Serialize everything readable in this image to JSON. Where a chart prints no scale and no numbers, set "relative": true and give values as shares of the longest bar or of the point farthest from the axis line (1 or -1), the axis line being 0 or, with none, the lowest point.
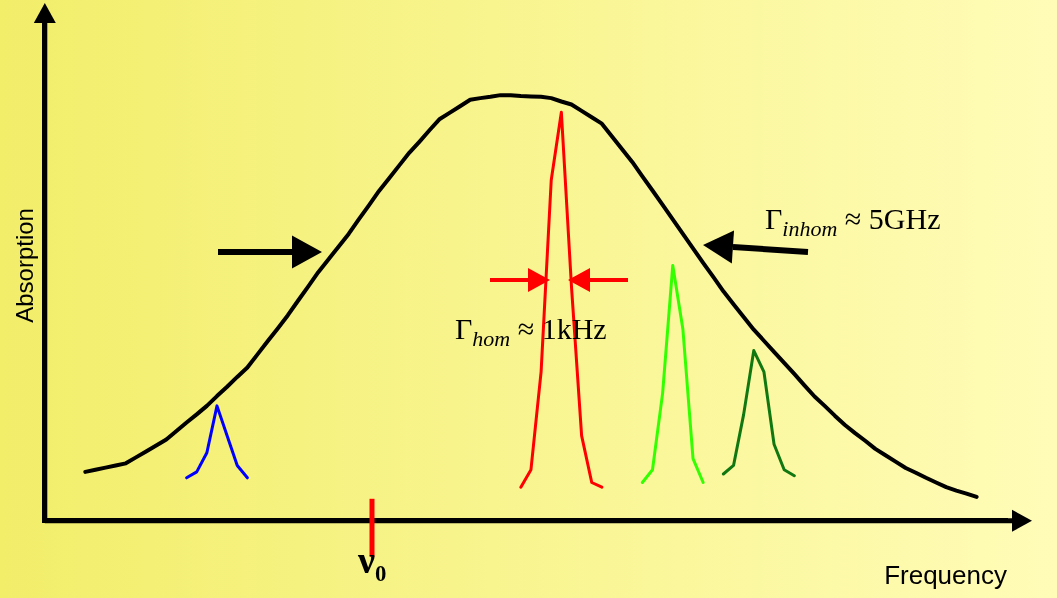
{
  "chart_data": {
    "type": "line",
    "relative": true,
    "xlabel": "Frequency",
    "ylabel": "Absorption",
    "tick_labels": false,
    "grid": false,
    "legend": false,
    "marker": "none",
    "categories": [
      null,
      null,
      null,
      null,
      null,
      null,
      null,
      null,
      null,
      null,
      null,
      null,
      null,
      null,
      null,
      null,
      null,
      null,
      null,
      null,
      null,
      null,
      null,
      null,
      null,
      null,
      null,
      null,
      null,
      null,
      null,
      null,
      null,
      null,
      null,
      null,
      null,
      null,
      null,
      null,
      null,
      null,
      null,
      null,
      null,
      null,
      null,
      null,
      null,
      null,
      null,
      null,
      null,
      null,
      null,
      null,
      null,
      null,
      null,
      null,
      null,
      null,
      null,
      null,
      null,
      null,
      null,
      null,
      null,
      null,
      null,
      null,
      null,
      null,
      null,
      null,
      null,
      null,
      null,
      null,
      null,
      null,
      null,
      null,
      null,
      null,
      null,
      null,
      null,
      null,
      null,
      null,
      null,
      null,
      null,
      null
    ],
    "series": [
      {
        "color": "#000000",
        "values": [
          null,
          null,
          null,
          null,
          0.115,
          0.12,
          0.125,
          0.13,
          0.135,
          0.149,
          0.163,
          0.177,
          0.191,
          0.211,
          0.231,
          0.25,
          0.27,
          0.293,
          0.315,
          0.338,
          0.36,
          0.391,
          0.422,
          0.452,
          0.483,
          0.517,
          0.55,
          0.584,
          0.614,
          0.644,
          0.674,
          0.708,
          0.741,
          0.775,
          0.805,
          0.835,
          0.865,
          0.891,
          0.918,
          0.944,
          0.959,
          0.974,
          0.989,
          0.993,
          0.996,
          1,
          1,
          0.998,
          0.997,
          0.996,
          0.993,
          0.985,
          0.978,
          0.963,
          0.948,
          0.933,
          0.903,
          0.873,
          0.843,
          0.809,
          0.776,
          0.742,
          0.708,
          0.674,
          0.64,
          0.606,
          0.573,
          0.539,
          0.509,
          0.479,
          0.449,
          0.423,
          0.397,
          0.371,
          0.345,
          0.318,
          0.292,
          0.27,
          0.247,
          0.225,
          0.206,
          0.188,
          0.169,
          0.154,
          0.139,
          0.124,
          0.113,
          0.101,
          0.09,
          0.079,
          0.071,
          0.064,
          0.056,
          null,
          null,
          null
        ]
      },
      {
        "color": "#0000ff",
        "values": [
          null,
          null,
          null,
          null,
          null,
          null,
          null,
          null,
          null,
          null,
          null,
          null,
          null,
          null,
          0.101,
          0.115,
          0.16,
          0.27,
          0.2,
          0.13,
          0.101,
          null,
          null,
          null,
          null,
          null,
          null,
          null,
          null,
          null,
          null,
          null,
          null,
          null,
          null,
          null,
          null,
          null,
          null,
          null,
          null,
          null,
          null,
          null,
          null,
          null,
          null,
          null,
          null,
          null,
          null,
          null,
          null,
          null,
          null,
          null,
          null,
          null,
          null,
          null,
          null,
          null,
          null,
          null,
          null,
          null,
          null,
          null,
          null,
          null,
          null,
          null,
          null,
          null,
          null,
          null,
          null,
          null,
          null,
          null,
          null,
          null,
          null,
          null,
          null,
          null,
          null,
          null,
          null,
          null,
          null,
          null,
          null,
          null,
          null,
          null
        ]
      },
      {
        "color": "#ff0000",
        "values": [
          null,
          null,
          null,
          null,
          null,
          null,
          null,
          null,
          null,
          null,
          null,
          null,
          null,
          null,
          null,
          null,
          null,
          null,
          null,
          null,
          null,
          null,
          null,
          null,
          null,
          null,
          null,
          null,
          null,
          null,
          null,
          null,
          null,
          null,
          null,
          null,
          null,
          null,
          null,
          null,
          null,
          null,
          null,
          null,
          null,
          null,
          null,
          0.079,
          0.12,
          0.35,
          0.8,
          0.96,
          0.55,
          0.2,
          0.09,
          0.079,
          null,
          null,
          null,
          null,
          null,
          null,
          null,
          null,
          null,
          null,
          null,
          null,
          null,
          null,
          null,
          null,
          null,
          null,
          null,
          null,
          null,
          null,
          null,
          null,
          null,
          null,
          null,
          null,
          null,
          null,
          null,
          null,
          null,
          null,
          null,
          null,
          null,
          null,
          null,
          null
        ]
      },
      {
        "color": "#33ff00",
        "values": [
          null,
          null,
          null,
          null,
          null,
          null,
          null,
          null,
          null,
          null,
          null,
          null,
          null,
          null,
          null,
          null,
          null,
          null,
          null,
          null,
          null,
          null,
          null,
          null,
          null,
          null,
          null,
          null,
          null,
          null,
          null,
          null,
          null,
          null,
          null,
          null,
          null,
          null,
          null,
          null,
          null,
          null,
          null,
          null,
          null,
          null,
          null,
          null,
          null,
          null,
          null,
          null,
          null,
          null,
          null,
          null,
          null,
          null,
          null,
          0.09,
          0.12,
          0.3,
          0.6,
          0.45,
          0.146,
          0.09,
          null,
          null,
          null,
          null,
          null,
          null,
          null,
          null,
          null,
          null,
          null,
          null,
          null,
          null,
          null,
          null,
          null,
          null,
          null,
          null,
          null,
          null,
          null,
          null,
          null,
          null,
          null,
          null,
          null,
          null
        ]
      },
      {
        "color": "#117711",
        "values": [
          null,
          null,
          null,
          null,
          null,
          null,
          null,
          null,
          null,
          null,
          null,
          null,
          null,
          null,
          null,
          null,
          null,
          null,
          null,
          null,
          null,
          null,
          null,
          null,
          null,
          null,
          null,
          null,
          null,
          null,
          null,
          null,
          null,
          null,
          null,
          null,
          null,
          null,
          null,
          null,
          null,
          null,
          null,
          null,
          null,
          null,
          null,
          null,
          null,
          null,
          null,
          null,
          null,
          null,
          null,
          null,
          null,
          null,
          null,
          null,
          null,
          null,
          null,
          null,
          null,
          null,
          null,
          0.11,
          0.13,
          0.25,
          0.4,
          0.35,
          0.18,
          0.12,
          0.106,
          null,
          null,
          null,
          null,
          null,
          null,
          null,
          null,
          null,
          null,
          null,
          null,
          null,
          null,
          null,
          null,
          null,
          null,
          null,
          null,
          null
        ]
      }
    ],
    "annotations": [
      "Γ$_{inhom}$ ≈ 5GHz",
      "Γ$_{hom}$ ≈ 1kHz",
      "ν₀"
    ]
  }
}
